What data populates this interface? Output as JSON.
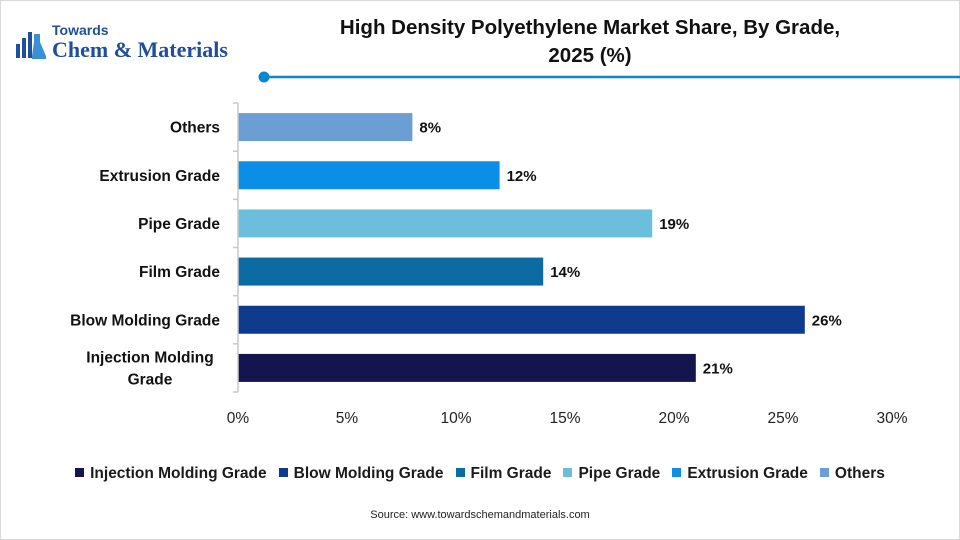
{
  "logo": {
    "line1": "Towards",
    "line2": "Chem & Materials"
  },
  "source": "Source:  www.towardschemandmaterials.com",
  "chart_data": {
    "type": "bar",
    "orientation": "horizontal",
    "title": "High Density Polyethylene Market Share, By Grade, 2025 (%)",
    "title_lines": [
      "High Density Polyethylene Market Share, By Grade,",
      "2025 (%)"
    ],
    "categories": [
      "Injection Molding Grade",
      "Blow Molding Grade",
      "Film Grade",
      "Pipe Grade",
      "Extrusion Grade",
      "Others"
    ],
    "category_label_lines": [
      [
        "Injection Molding",
        "Grade"
      ],
      [
        "Blow Molding Grade"
      ],
      [
        "Film Grade"
      ],
      [
        "Pipe Grade"
      ],
      [
        "Extrusion Grade"
      ],
      [
        "Others"
      ]
    ],
    "values": [
      21,
      26,
      14,
      19,
      12,
      8
    ],
    "data_labels": [
      "21%",
      "26%",
      "14%",
      "19%",
      "12%",
      "8%"
    ],
    "colors": [
      "#14144f",
      "#0f3b8f",
      "#0d6ba3",
      "#6bbfdc",
      "#0b8ee8",
      "#6b9fd4"
    ],
    "xlim": [
      0,
      30
    ],
    "x_ticks": [
      0,
      5,
      10,
      15,
      20,
      25,
      30
    ],
    "x_tick_labels": [
      "0%",
      "5%",
      "10%",
      "15%",
      "20%",
      "25%",
      "30%"
    ],
    "xlabel": "",
    "ylabel": "",
    "grid": false,
    "legend": {
      "position": "bottom",
      "entries": [
        "Injection Molding Grade",
        "Blow Molding Grade",
        "Film Grade",
        "Pipe Grade",
        "Extrusion Grade",
        "Others"
      ]
    }
  }
}
